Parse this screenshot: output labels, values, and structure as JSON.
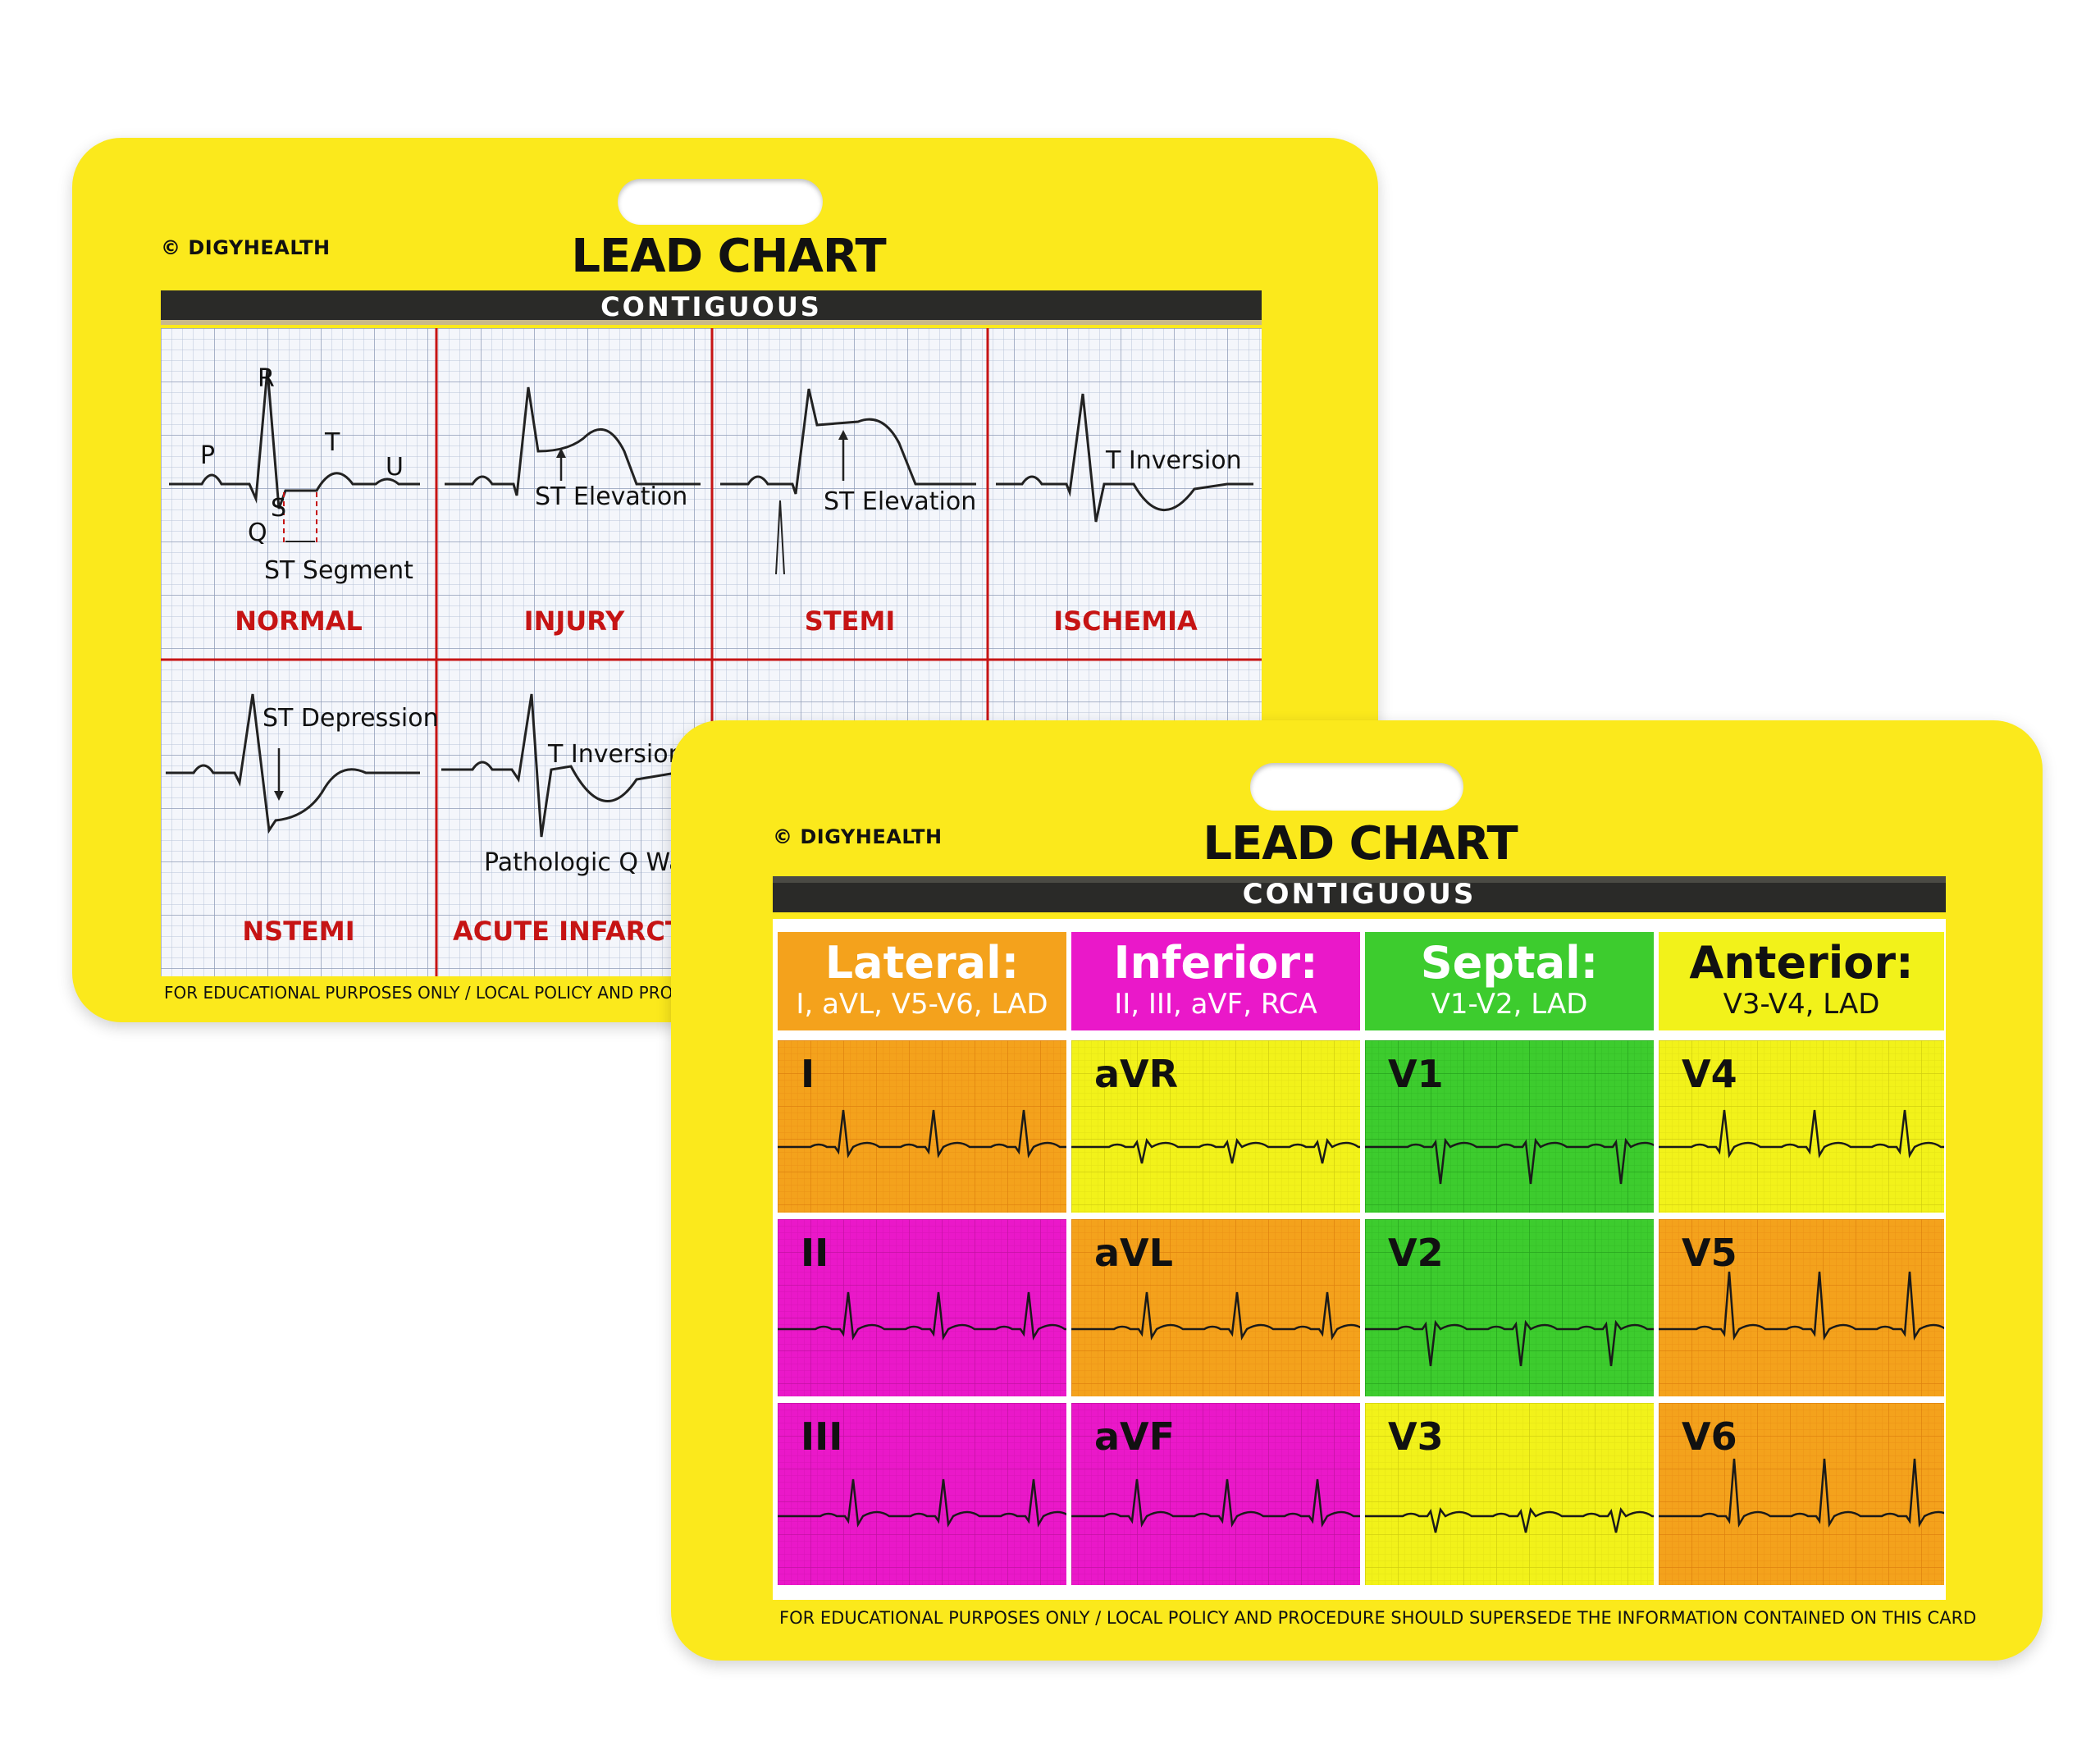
{
  "colors": {
    "card": "#fbe91c",
    "orange": "#f4a21c",
    "magenta": "#ea18c9",
    "green": "#3dcc2e",
    "yellow": "#f2f21a",
    "red_label": "#c61414"
  },
  "back_card": {
    "copyright": "© DIGYHEALTH",
    "title": "LEAD CHART",
    "subtitle": "CONTIGUOUS",
    "waveform_labels": {
      "r": "R",
      "p": "P",
      "t": "T",
      "u": "U",
      "s": "S",
      "q": "Q",
      "st_segment": "ST Segment",
      "st_elevation": "ST Elevation",
      "t_inversion": "T Inversion",
      "st_depression": "ST Depression",
      "pathologic_q": "Pathologic Q Wave"
    },
    "conditions": [
      "NORMAL",
      "INJURY",
      "STEMI",
      "ISCHEMIA",
      "NSTEMI",
      "ACUTE INFARCTION"
    ],
    "footer": "FOR EDUCATIONAL PURPOSES ONLY / LOCAL POLICY AND PROCEDURE SHOULD SUPERSEDE THE INFORMATION CONTAINED ON THIS CARD"
  },
  "front_card": {
    "copyright": "© DIGYHEALTH",
    "title": "LEAD CHART",
    "subtitle": "CONTIGUOUS",
    "headers": [
      {
        "title": "Lateral:",
        "leads": "I, aVL, V5-V6, LAD",
        "color": "orange"
      },
      {
        "title": "Inferior:",
        "leads": "II, III, aVF, RCA",
        "color": "magenta"
      },
      {
        "title": "Septal:",
        "leads": "V1-V2, LAD",
        "color": "green"
      },
      {
        "title": "Anterior:",
        "leads": "V3-V4, LAD",
        "color": "yellow"
      }
    ],
    "leads": [
      {
        "name": "I",
        "color": "orange"
      },
      {
        "name": "aVR",
        "color": "yellow"
      },
      {
        "name": "V1",
        "color": "green"
      },
      {
        "name": "V4",
        "color": "yellow"
      },
      {
        "name": "II",
        "color": "magenta"
      },
      {
        "name": "aVL",
        "color": "orange"
      },
      {
        "name": "V2",
        "color": "green"
      },
      {
        "name": "V5",
        "color": "orange"
      },
      {
        "name": "III",
        "color": "magenta"
      },
      {
        "name": "aVF",
        "color": "magenta"
      },
      {
        "name": "V3",
        "color": "yellow"
      },
      {
        "name": "V6",
        "color": "orange"
      }
    ],
    "footer": "FOR EDUCATIONAL PURPOSES ONLY / LOCAL POLICY AND PROCEDURE SHOULD SUPERSEDE THE INFORMATION CONTAINED ON THIS CARD"
  }
}
